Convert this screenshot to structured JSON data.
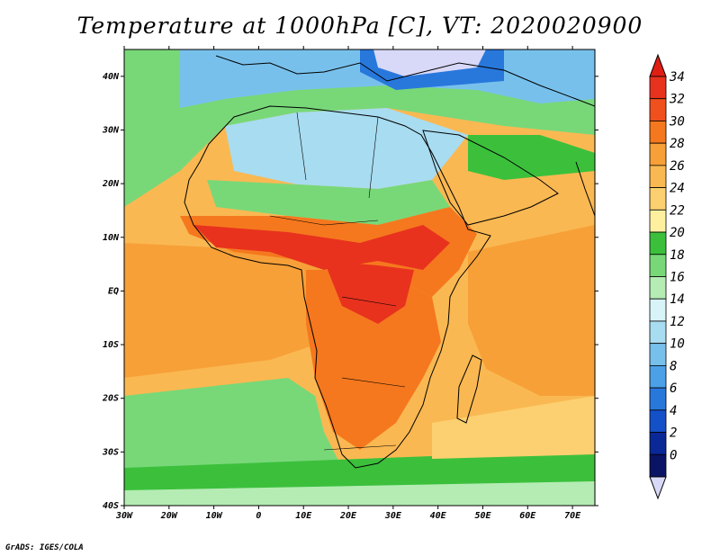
{
  "title": "Temperature at 1000hPa [C], VT: 2020020900",
  "credit": "GrADS: IGES/COLA",
  "map": {
    "lon_ticks": [
      "30W",
      "20W",
      "10W",
      "0",
      "10E",
      "20E",
      "30E",
      "40E",
      "50E",
      "60E",
      "70E"
    ],
    "lat_ticks": [
      "40N",
      "30N",
      "20N",
      "10N",
      "EQ",
      "10S",
      "20S",
      "30S",
      "40S"
    ],
    "colorbar_values": [
      "34",
      "32",
      "30",
      "28",
      "26",
      "24",
      "22",
      "20",
      "18",
      "16",
      "14",
      "12",
      "10",
      "8",
      "6",
      "4",
      "2",
      "0"
    ],
    "colorbar_colors": [
      "#e8321e",
      "#f0501e",
      "#f5781e",
      "#f7a038",
      "#fab852",
      "#fcd070",
      "#fff0a0",
      "#3cc03c",
      "#78d878",
      "#b4ecb4",
      "#d8f4f8",
      "#a8dcf0",
      "#78c0ec",
      "#4ca0e8",
      "#2878dc",
      "#1450c8",
      "#0a2896",
      "#0a1464"
    ],
    "colorbar_over_color": "#e01e14",
    "colorbar_under_color": "#d8d8f8"
  }
}
